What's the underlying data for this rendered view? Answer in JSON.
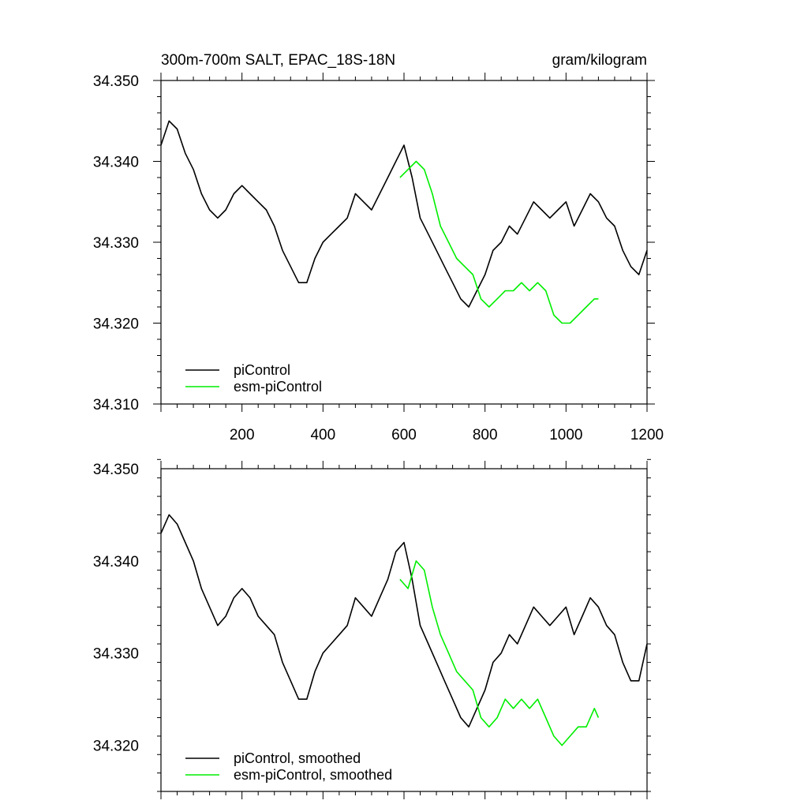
{
  "figure": {
    "title_left": "300m-700m SALT, EPAC_18S-18N",
    "title_right": "gram/kilogram"
  },
  "colors": {
    "piControl": "#000000",
    "esm_piControl": "#00ee00"
  },
  "chart_data": [
    {
      "type": "line",
      "title": "300m-700m SALT, EPAC_18S-18N",
      "units": "gram/kilogram",
      "xlim": [
        0,
        1200
      ],
      "ylim": [
        34.31,
        34.35
      ],
      "x_ticks": [
        200,
        400,
        600,
        800,
        1000,
        1200
      ],
      "y_ticks": [
        "34.310",
        "34.320",
        "34.330",
        "34.340",
        "34.350"
      ],
      "grid": false,
      "legend": "bottom-left",
      "series": [
        {
          "name": "piControl",
          "color": "#000000",
          "x": [
            0,
            20,
            40,
            60,
            80,
            100,
            120,
            140,
            160,
            180,
            200,
            220,
            240,
            260,
            280,
            300,
            320,
            340,
            360,
            380,
            400,
            420,
            440,
            460,
            480,
            500,
            520,
            540,
            560,
            580,
            600,
            620,
            640,
            660,
            680,
            700,
            720,
            740,
            760,
            780,
            800,
            820,
            840,
            860,
            880,
            900,
            920,
            940,
            960,
            980,
            1000,
            1020,
            1040,
            1060,
            1080,
            1100,
            1120,
            1140,
            1160,
            1180,
            1200
          ],
          "y": [
            34.342,
            34.345,
            34.344,
            34.341,
            34.339,
            34.336,
            34.334,
            34.333,
            34.334,
            34.336,
            34.337,
            34.336,
            34.335,
            34.334,
            34.332,
            34.329,
            34.327,
            34.325,
            34.325,
            34.328,
            34.33,
            34.331,
            34.332,
            34.333,
            34.336,
            34.335,
            34.334,
            34.336,
            34.338,
            34.34,
            34.342,
            34.338,
            34.333,
            34.331,
            34.329,
            34.327,
            34.325,
            34.323,
            34.322,
            34.324,
            34.326,
            34.329,
            34.33,
            34.332,
            34.331,
            34.333,
            34.335,
            34.334,
            34.333,
            34.334,
            34.335,
            34.332,
            34.334,
            34.336,
            34.335,
            34.333,
            34.332,
            34.329,
            34.327,
            34.326,
            34.329
          ]
        },
        {
          "name": "esm-piControl",
          "color": "#00ee00",
          "x": [
            590,
            610,
            630,
            650,
            670,
            690,
            710,
            730,
            750,
            770,
            790,
            810,
            830,
            850,
            870,
            890,
            910,
            930,
            950,
            970,
            990,
            1010,
            1030,
            1050,
            1070,
            1080
          ],
          "y": [
            34.338,
            34.339,
            34.34,
            34.339,
            34.336,
            34.332,
            34.33,
            34.328,
            34.327,
            34.326,
            34.323,
            34.322,
            34.323,
            34.324,
            34.324,
            34.325,
            34.324,
            34.325,
            34.324,
            34.321,
            34.32,
            34.32,
            34.321,
            34.322,
            34.323,
            34.323
          ]
        }
      ]
    },
    {
      "type": "line",
      "xlim": [
        0,
        1200
      ],
      "ylim": [
        34.315,
        34.35
      ],
      "y_ticks": [
        "34.320",
        "34.330",
        "34.340",
        "34.350"
      ],
      "grid": false,
      "legend": "bottom-left",
      "series": [
        {
          "name": "piControl, smoothed",
          "color": "#000000",
          "x": [
            0,
            20,
            40,
            60,
            80,
            100,
            120,
            140,
            160,
            180,
            200,
            220,
            240,
            260,
            280,
            300,
            320,
            340,
            360,
            380,
            400,
            420,
            440,
            460,
            480,
            500,
            520,
            540,
            560,
            580,
            600,
            620,
            640,
            660,
            680,
            700,
            720,
            740,
            760,
            780,
            800,
            820,
            840,
            860,
            880,
            900,
            920,
            940,
            960,
            980,
            1000,
            1020,
            1040,
            1060,
            1080,
            1100,
            1120,
            1140,
            1160,
            1180,
            1200
          ],
          "y": [
            34.343,
            34.345,
            34.344,
            34.342,
            34.34,
            34.337,
            34.335,
            34.333,
            34.334,
            34.336,
            34.337,
            34.336,
            34.334,
            34.333,
            34.332,
            34.329,
            34.327,
            34.325,
            34.325,
            34.328,
            34.33,
            34.331,
            34.332,
            34.333,
            34.336,
            34.335,
            34.334,
            34.336,
            34.338,
            34.341,
            34.342,
            34.338,
            34.333,
            34.331,
            34.329,
            34.327,
            34.325,
            34.323,
            34.322,
            34.324,
            34.326,
            34.329,
            34.33,
            34.332,
            34.331,
            34.333,
            34.335,
            34.334,
            34.333,
            34.334,
            34.335,
            34.332,
            34.334,
            34.336,
            34.335,
            34.333,
            34.332,
            34.329,
            34.327,
            34.327,
            34.331
          ]
        },
        {
          "name": "esm-piControl, smoothed",
          "color": "#00ee00",
          "x": [
            590,
            610,
            630,
            650,
            670,
            690,
            710,
            730,
            750,
            770,
            790,
            810,
            830,
            850,
            870,
            890,
            910,
            930,
            950,
            970,
            990,
            1010,
            1030,
            1050,
            1070,
            1080
          ],
          "y": [
            34.338,
            34.337,
            34.34,
            34.339,
            34.335,
            34.332,
            34.33,
            34.328,
            34.327,
            34.326,
            34.323,
            34.322,
            34.323,
            34.325,
            34.324,
            34.325,
            34.324,
            34.325,
            34.323,
            34.321,
            34.32,
            34.321,
            34.322,
            34.322,
            34.324,
            34.323
          ]
        }
      ]
    }
  ]
}
